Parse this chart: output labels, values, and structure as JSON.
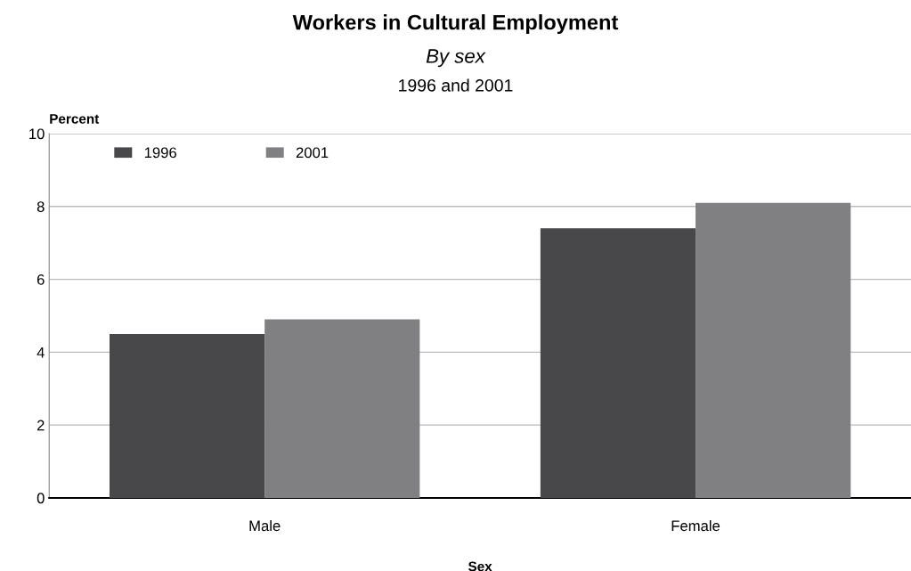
{
  "chart_data": {
    "type": "bar",
    "title": "Workers in Cultural Employment",
    "subtitle": "By sex",
    "annotations": [
      "1996 and 2001"
    ],
    "xlabel": "Sex",
    "ylabel": "Percent",
    "categories": [
      "Male",
      "Female"
    ],
    "series": [
      {
        "name": "1996",
        "color": "#48484a",
        "values": [
          4.5,
          7.4
        ]
      },
      {
        "name": "2001",
        "color": "#808083",
        "values": [
          4.9,
          8.1
        ]
      }
    ],
    "ylim": [
      0,
      10
    ],
    "yticks": [
      0,
      2,
      4,
      6,
      8,
      10
    ],
    "grid": "y",
    "legend": "top left"
  }
}
